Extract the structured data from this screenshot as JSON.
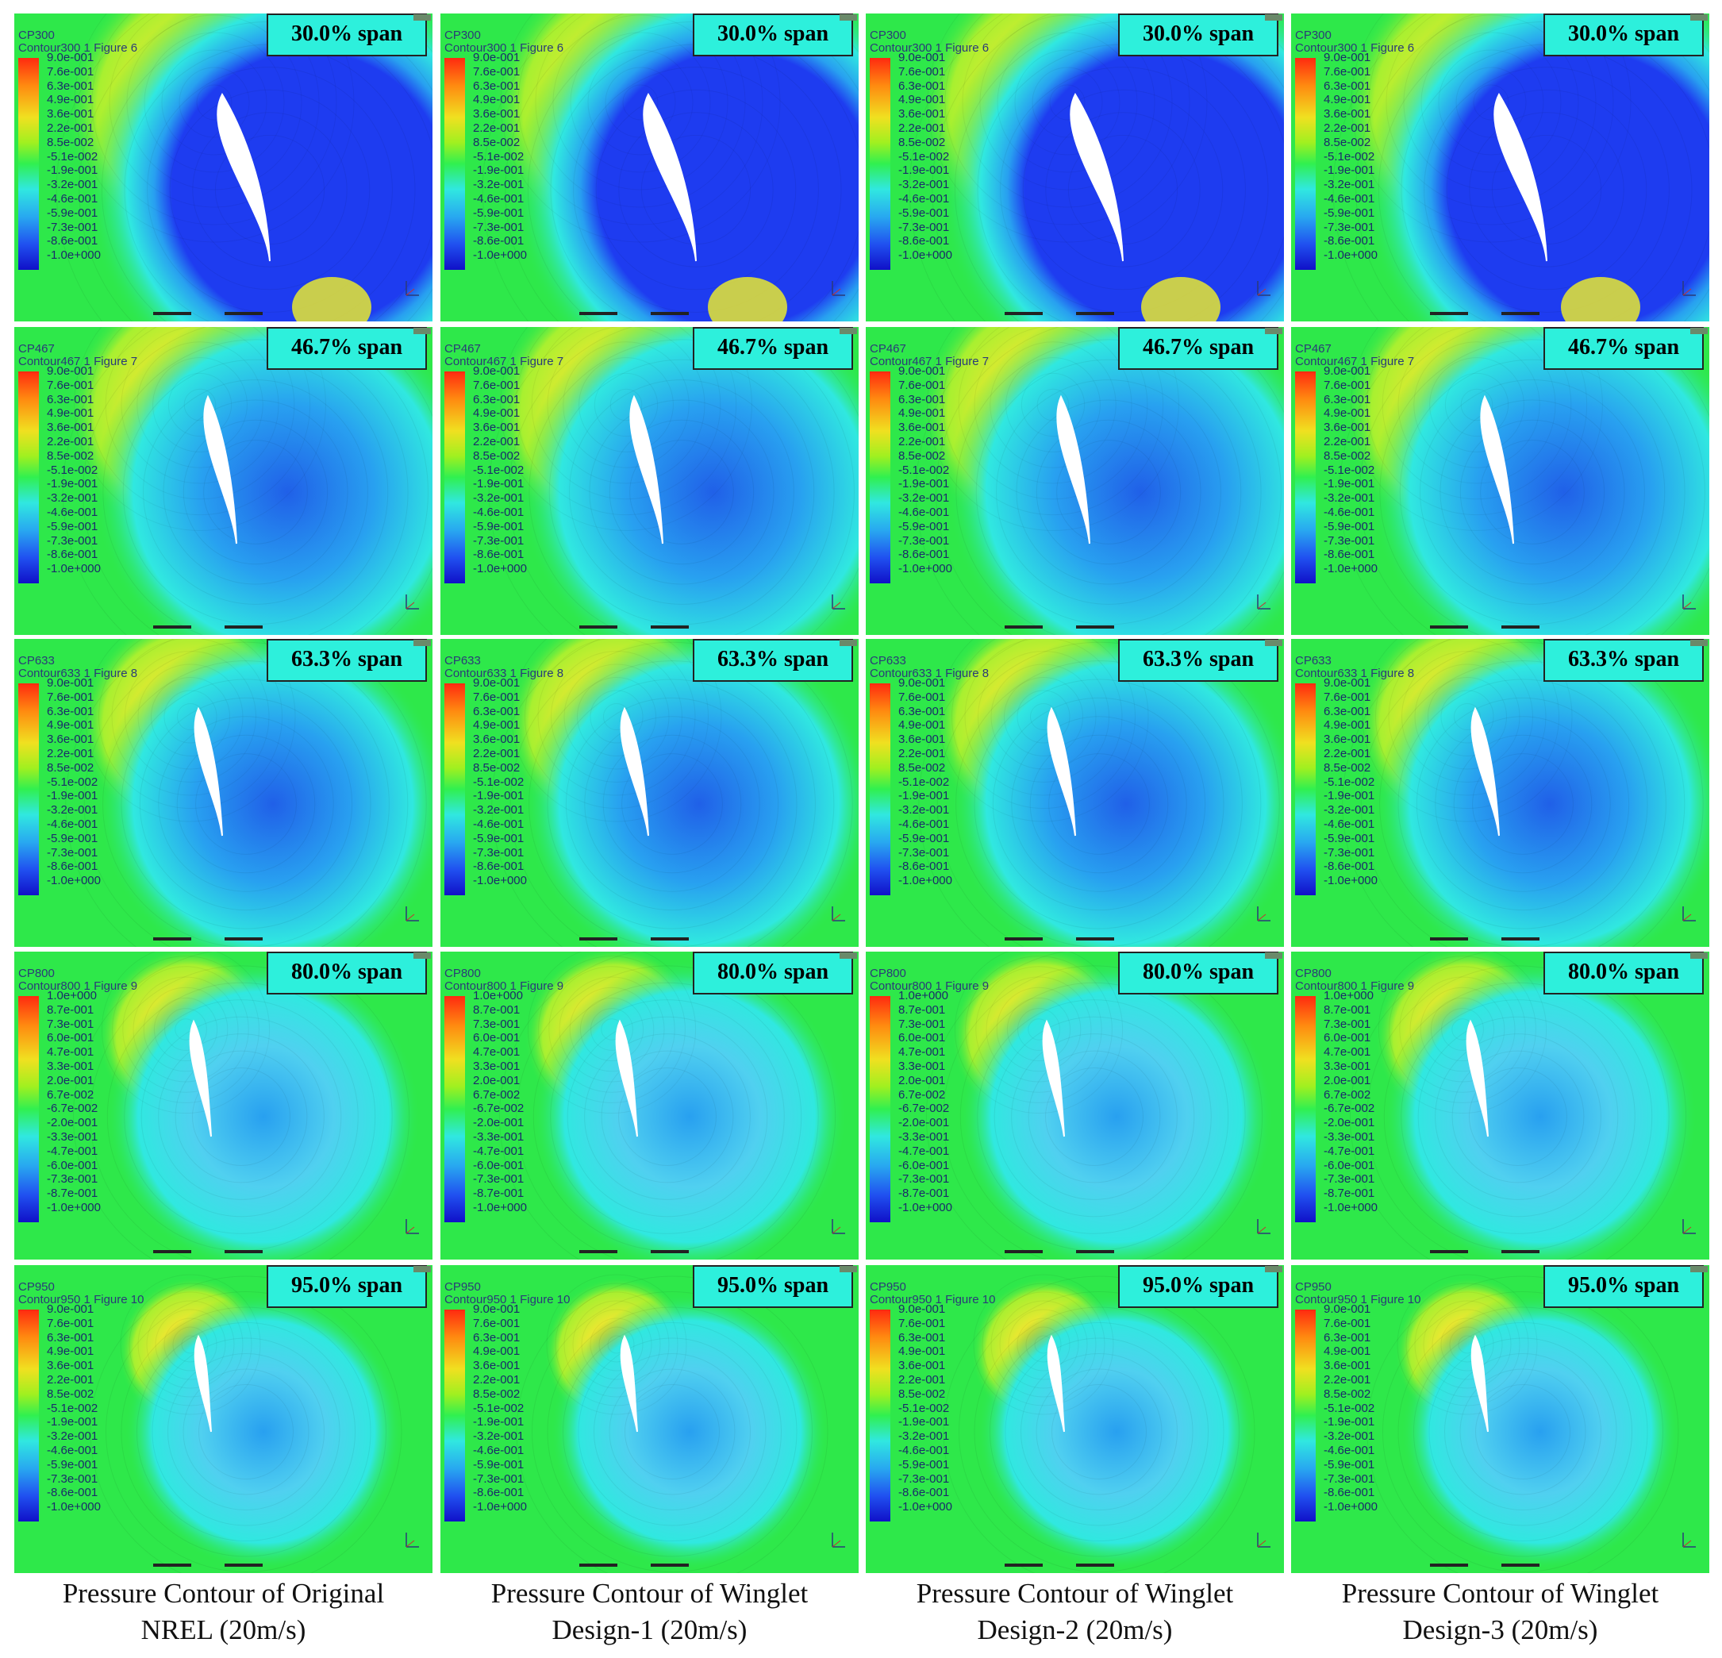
{
  "columns": [
    {
      "caption_line1": "Pressure Contour of Original",
      "caption_line2": "NREL (20m/s)"
    },
    {
      "caption_line1": "Pressure Contour of Winglet",
      "caption_line2": "Design-1 (20m/s)"
    },
    {
      "caption_line1": "Pressure Contour of Winglet",
      "caption_line2": "Design-2 (20m/s)"
    },
    {
      "caption_line1": "Pressure Contour of Winglet",
      "caption_line2": "Design-3 (20m/s)"
    }
  ],
  "rows": [
    {
      "span_label": "30.0% span",
      "var": "CP300",
      "contour": "Contour300 1 Figure 6",
      "ticks": [
        "9.0e-001",
        "7.6e-001",
        "6.3e-001",
        "4.9e-001",
        "3.6e-001",
        "2.2e-001",
        "8.5e-002",
        "-5.1e-002",
        "-1.9e-001",
        "-3.2e-001",
        "-4.6e-001",
        "-5.9e-001",
        "-7.3e-001",
        "-8.6e-001",
        "-1.0e+000"
      ],
      "suction_intensity": 1.0,
      "pressure_intensity": 1.0
    },
    {
      "span_label": "46.7% span",
      "var": "CP467",
      "contour": "Contour467 1 Figure 7",
      "ticks": [
        "9.0e-001",
        "7.6e-001",
        "6.3e-001",
        "4.9e-001",
        "3.6e-001",
        "2.2e-001",
        "8.5e-002",
        "-5.1e-002",
        "-1.9e-001",
        "-3.2e-001",
        "-4.6e-001",
        "-5.9e-001",
        "-7.3e-001",
        "-8.6e-001",
        "-1.0e+000"
      ],
      "suction_intensity": 0.75,
      "pressure_intensity": 0.9
    },
    {
      "span_label": "63.3% span",
      "var": "CP633",
      "contour": "Contour633 1 Figure 8",
      "ticks": [
        "9.0e-001",
        "7.6e-001",
        "6.3e-001",
        "4.9e-001",
        "3.6e-001",
        "2.2e-001",
        "8.5e-002",
        "-5.1e-002",
        "-1.9e-001",
        "-3.2e-001",
        "-4.6e-001",
        "-5.9e-001",
        "-7.3e-001",
        "-8.6e-001",
        "-1.0e+000"
      ],
      "suction_intensity": 0.6,
      "pressure_intensity": 0.75
    },
    {
      "span_label": "80.0% span",
      "var": "CP800",
      "contour": "Contour800 1 Figure 9",
      "ticks": [
        "1.0e+000",
        "8.7e-001",
        "7.3e-001",
        "6.0e-001",
        "4.7e-001",
        "3.3e-001",
        "2.0e-001",
        "6.7e-002",
        "-6.7e-002",
        "-2.0e-001",
        "-3.3e-001",
        "-4.7e-001",
        "-6.0e-001",
        "-7.3e-001",
        "-8.7e-001",
        "-1.0e+000"
      ],
      "suction_intensity": 0.45,
      "pressure_intensity": 0.6
    },
    {
      "span_label": "95.0% span",
      "var": "CP950",
      "contour": "Contour950 1 Figure 10",
      "ticks": [
        "9.0e-001",
        "7.6e-001",
        "6.3e-001",
        "4.9e-001",
        "3.6e-001",
        "2.2e-001",
        "8.5e-002",
        "-5.1e-002",
        "-1.9e-001",
        "-3.2e-001",
        "-4.6e-001",
        "-5.9e-001",
        "-7.3e-001",
        "-8.6e-001",
        "-1.0e+000"
      ],
      "suction_intensity": 0.3,
      "pressure_intensity": 0.5
    }
  ],
  "colors": {
    "freestream": "#2ee84a",
    "stagnation_high": "#ff5a1a",
    "stagnation_mid": "#e8e830",
    "suction_deep": "#1e3cf0",
    "suction_mid": "#28a0f0",
    "suction_light": "#30e8e0",
    "span_box": "#2df0dc"
  },
  "icons": {
    "logo": "ansys-logo",
    "triad": "axis-triad-icon",
    "scalebar": "scale-bar"
  }
}
